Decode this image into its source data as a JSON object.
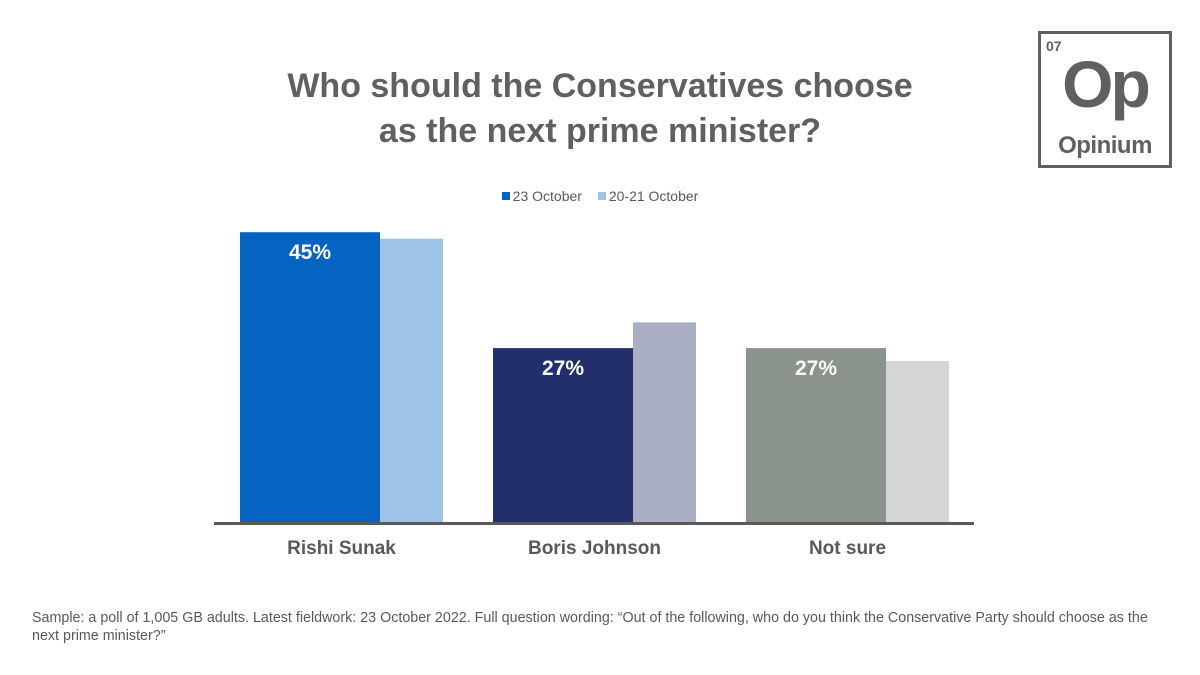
{
  "title_lines": [
    "Who should the Conservatives choose",
    "as the next prime minister?"
  ],
  "logo": {
    "number": "07",
    "mark": "Op",
    "word": "Opinium"
  },
  "footnote": "Sample: a poll of 1,005 GB adults. Latest fieldwork: 23 October 2022. Full question wording: “Out of the following, who do you think the Conservative Party should choose as the next prime minister?”",
  "colors": {
    "title": "#5f605f",
    "text": "#595959",
    "axis": "#595959",
    "series": [
      [
        "#0563c1",
        "#232f6d",
        "#8b938d"
      ],
      [
        "#9dc3e6",
        "#a9aec5",
        "#d4d5d5"
      ]
    ],
    "legend": [
      "#0563c1",
      "#9dc3e6"
    ]
  },
  "chart_data": {
    "type": "bar",
    "categories": [
      "Rishi Sunak",
      "Boris Johnson",
      "Not sure"
    ],
    "series": [
      {
        "name": "23 October",
        "values": [
          45,
          27,
          27
        ],
        "labels": [
          "45%",
          "27%",
          "27%"
        ]
      },
      {
        "name": "20-21 October",
        "values": [
          44,
          31,
          25
        ]
      }
    ],
    "ylim": [
      0,
      50
    ],
    "legend_position": "top",
    "grid": false
  }
}
